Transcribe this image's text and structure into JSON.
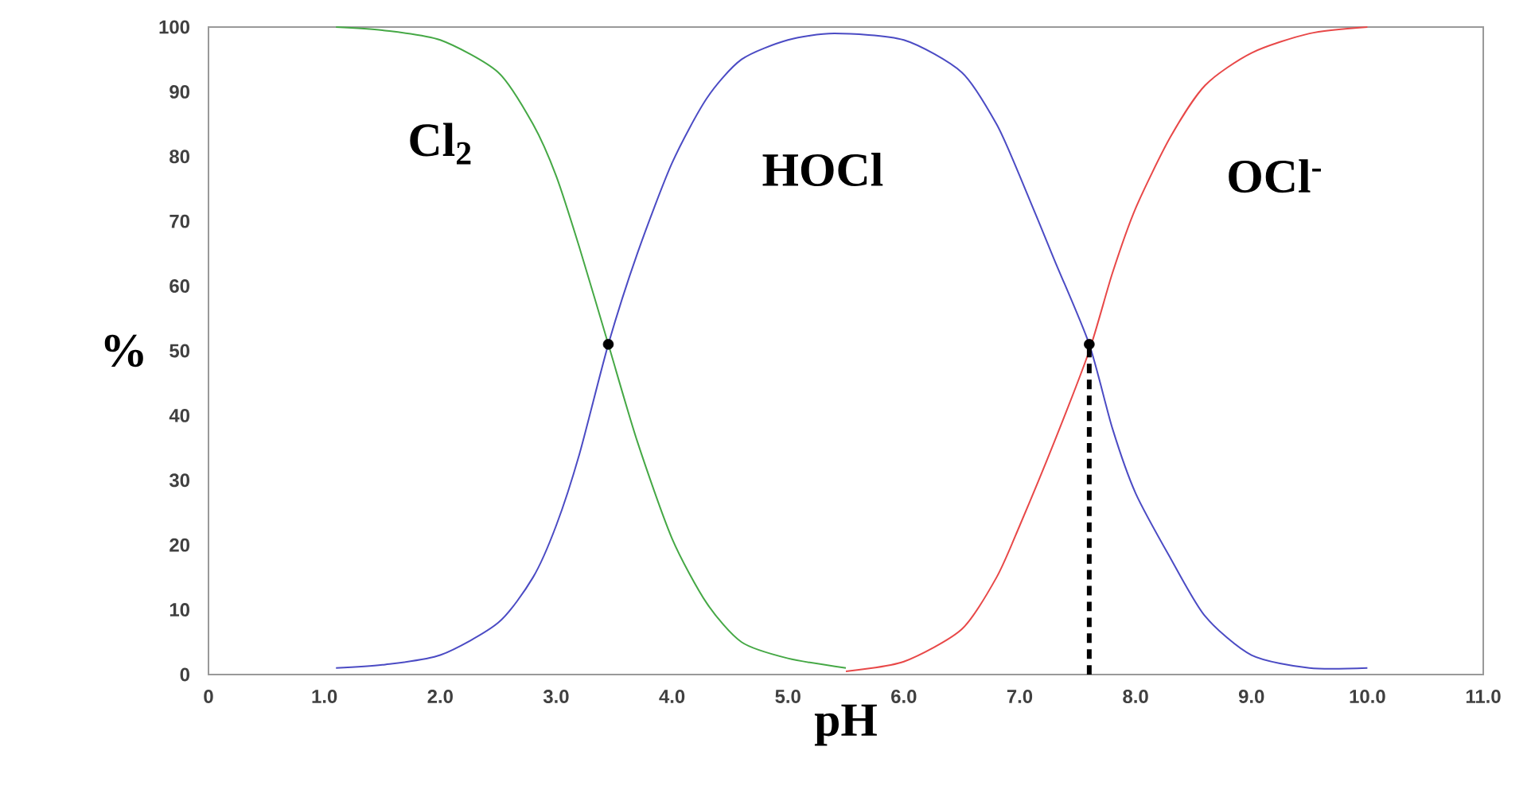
{
  "chart_data": {
    "type": "line",
    "xlabel": "pH",
    "ylabel": "%",
    "xlim": [
      0,
      11
    ],
    "ylim": [
      0,
      100
    ],
    "xticks": [
      0,
      {
        "value": 1,
        "label": "1.0"
      },
      {
        "value": 2,
        "label": "2.0"
      },
      {
        "value": 3,
        "label": "3.0"
      },
      {
        "value": 4,
        "label": "4.0"
      },
      {
        "value": 5,
        "label": "5.0"
      },
      {
        "value": 6,
        "label": "6.0"
      },
      {
        "value": 7,
        "label": "7.0"
      },
      {
        "value": 8,
        "label": "8.0"
      },
      {
        "value": 9,
        "label": "9.0"
      },
      {
        "value": 10,
        "label": "10.0"
      },
      {
        "value": 11,
        "label": "11.0"
      }
    ],
    "yticks": [
      0,
      10,
      20,
      30,
      40,
      50,
      60,
      70,
      80,
      90,
      100
    ],
    "grid": false,
    "marker": "none",
    "series": [
      {
        "name": "Cl$_{2}$",
        "color": "#45a845",
        "x": [
          1.1,
          1.5,
          2.0,
          2.5,
          2.8,
          3.0,
          3.2,
          3.45,
          3.7,
          4.0,
          4.3,
          4.6,
          5.0,
          5.5
        ],
        "values": [
          100,
          99.5,
          98,
          93,
          85,
          77,
          66,
          51,
          36,
          21,
          11,
          5,
          2.5,
          1
        ]
      },
      {
        "name": "HOCl",
        "color": "#4b4bc4",
        "x": [
          1.1,
          1.5,
          2.0,
          2.5,
          2.8,
          3.0,
          3.2,
          3.45,
          3.7,
          4.0,
          4.3,
          4.6,
          5.0,
          5.4,
          6.0,
          6.5,
          6.8,
          7.0,
          7.3,
          7.6,
          7.8,
          8.0,
          8.3,
          8.6,
          9.0,
          9.5,
          10.0
        ],
        "values": [
          1,
          1.5,
          3,
          8,
          15,
          23,
          34,
          51,
          65,
          79,
          89,
          95,
          98,
          99,
          98,
          93,
          85,
          77,
          64,
          51,
          38,
          28,
          18,
          9,
          3,
          1,
          1
        ]
      },
      {
        "name": "OCl$^{-}$",
        "color": "#e84848",
        "x": [
          5.5,
          6.0,
          6.5,
          6.8,
          7.0,
          7.3,
          7.6,
          7.8,
          8.0,
          8.3,
          8.6,
          9.0,
          9.5,
          10.0
        ],
        "values": [
          0.5,
          2,
          7,
          15,
          23,
          36,
          50,
          62,
          72,
          83,
          91,
          96,
          99,
          100
        ]
      },
      {
        "type": "line",
        "color": "#000000",
        "line_style": "dashed",
        "x": [
          7.6,
          7.6
        ],
        "values": [
          0,
          51
        ]
      },
      {
        "type": "scatter",
        "color": "#000000",
        "marker": "circle",
        "x": [
          3.45,
          7.6
        ],
        "values": [
          51,
          51
        ]
      }
    ]
  }
}
